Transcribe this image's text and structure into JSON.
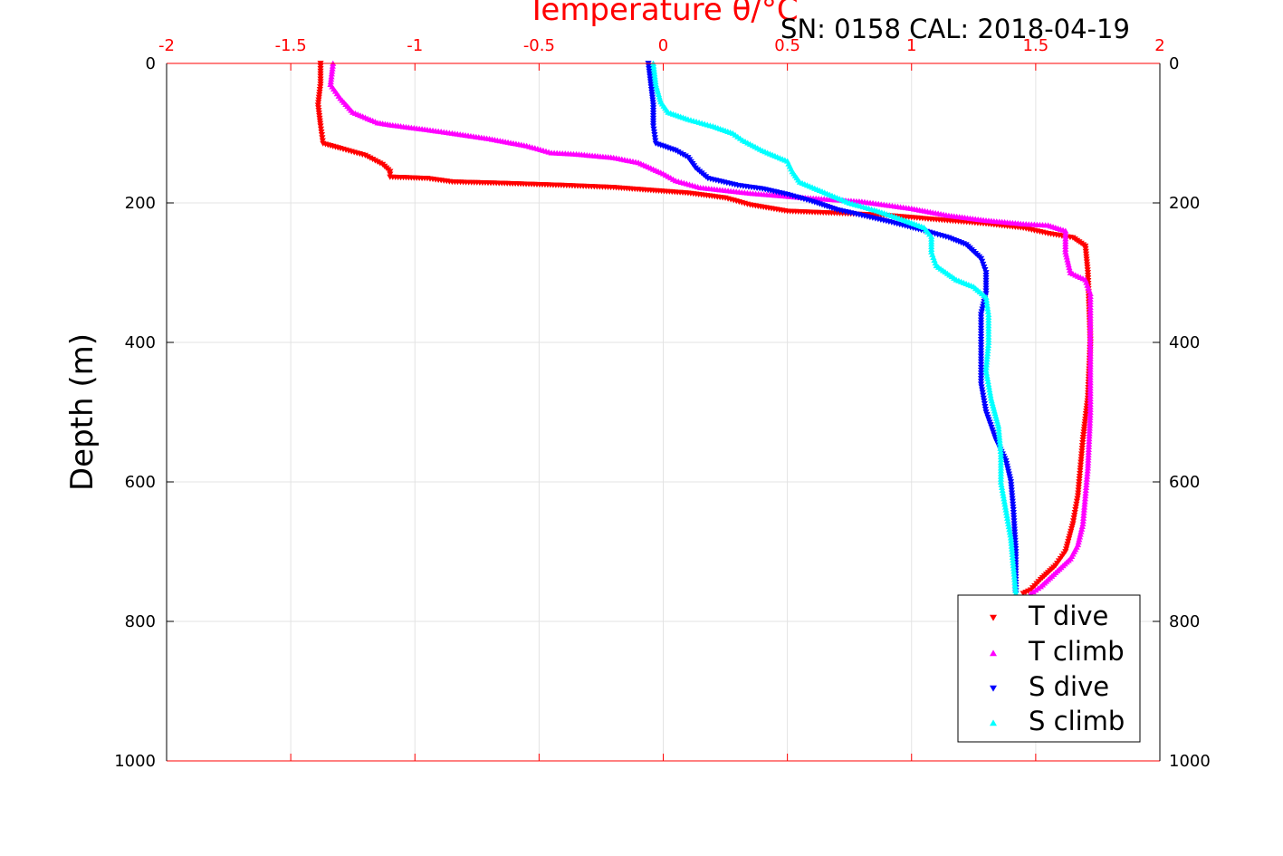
{
  "chart_data": {
    "type": "scatter",
    "title": "Temperature θ/°C",
    "subtitle": "SN: 0158  CAL: 2018-04-19",
    "xlabel": "Temperature θ/°C",
    "ylabel": "Depth (m)",
    "xlim": [
      -2,
      2
    ],
    "ylim": [
      0,
      1000
    ],
    "y_reversed": true,
    "x_axis_position": "top",
    "x_ticks": [
      "-2",
      "-1.5",
      "-1",
      "-0.5",
      "0",
      "0.5",
      "1",
      "1.5",
      "2"
    ],
    "y_ticks": [
      "0",
      "200",
      "400",
      "600",
      "800",
      "1000"
    ],
    "grid": true,
    "legend": {
      "position": "bottom-right",
      "entries": [
        "T dive",
        "T climb",
        "S dive",
        "S climb"
      ]
    },
    "series": [
      {
        "name": "T dive",
        "color": "#ff0000",
        "marker": "triangle-down",
        "points": [
          [
            -1.38,
            0
          ],
          [
            -1.38,
            30
          ],
          [
            -1.39,
            60
          ],
          [
            -1.38,
            90
          ],
          [
            -1.37,
            115
          ],
          [
            -1.3,
            122
          ],
          [
            -1.2,
            132
          ],
          [
            -1.13,
            145
          ],
          [
            -1.1,
            155
          ],
          [
            -1.1,
            163
          ],
          [
            -0.95,
            165
          ],
          [
            -0.85,
            170
          ],
          [
            -0.65,
            172
          ],
          [
            -0.4,
            175
          ],
          [
            -0.2,
            178
          ],
          [
            -0.05,
            182
          ],
          [
            0.1,
            186
          ],
          [
            0.25,
            193
          ],
          [
            0.35,
            203
          ],
          [
            0.5,
            212
          ],
          [
            0.7,
            215
          ],
          [
            0.9,
            218
          ],
          [
            1.1,
            224
          ],
          [
            1.3,
            230
          ],
          [
            1.45,
            236
          ],
          [
            1.55,
            244
          ],
          [
            1.65,
            250
          ],
          [
            1.7,
            262
          ],
          [
            1.71,
            300
          ],
          [
            1.72,
            400
          ],
          [
            1.71,
            480
          ],
          [
            1.69,
            540
          ],
          [
            1.68,
            580
          ],
          [
            1.67,
            620
          ],
          [
            1.65,
            660
          ],
          [
            1.62,
            700
          ],
          [
            1.58,
            720
          ],
          [
            1.52,
            740
          ],
          [
            1.48,
            755
          ],
          [
            1.45,
            760
          ]
        ]
      },
      {
        "name": "T climb",
        "color": "#ff00ff",
        "marker": "triangle-up",
        "points": [
          [
            -1.33,
            0
          ],
          [
            -1.34,
            30
          ],
          [
            -1.3,
            50
          ],
          [
            -1.25,
            70
          ],
          [
            -1.15,
            85
          ],
          [
            -1.1,
            88
          ],
          [
            -0.95,
            95
          ],
          [
            -0.85,
            100
          ],
          [
            -0.7,
            108
          ],
          [
            -0.55,
            118
          ],
          [
            -0.45,
            128
          ],
          [
            -0.35,
            130
          ],
          [
            -0.2,
            135
          ],
          [
            -0.1,
            142
          ],
          [
            -0.05,
            150
          ],
          [
            0.0,
            158
          ],
          [
            0.05,
            168
          ],
          [
            0.15,
            178
          ],
          [
            0.35,
            186
          ],
          [
            0.55,
            192
          ],
          [
            0.8,
            198
          ],
          [
            1.0,
            208
          ],
          [
            1.15,
            218
          ],
          [
            1.3,
            225
          ],
          [
            1.45,
            230
          ],
          [
            1.55,
            232
          ],
          [
            1.62,
            240
          ],
          [
            1.62,
            270
          ],
          [
            1.64,
            300
          ],
          [
            1.7,
            310
          ],
          [
            1.72,
            330
          ],
          [
            1.72,
            400
          ],
          [
            1.72,
            500
          ],
          [
            1.71,
            580
          ],
          [
            1.7,
            620
          ],
          [
            1.69,
            660
          ],
          [
            1.67,
            690
          ],
          [
            1.64,
            710
          ],
          [
            1.58,
            730
          ],
          [
            1.52,
            750
          ],
          [
            1.48,
            760
          ]
        ]
      },
      {
        "name": "S dive",
        "color": "#0000ff",
        "marker": "triangle-down",
        "points": [
          [
            -0.06,
            0
          ],
          [
            -0.05,
            30
          ],
          [
            -0.04,
            60
          ],
          [
            -0.04,
            90
          ],
          [
            -0.03,
            115
          ],
          [
            0.05,
            125
          ],
          [
            0.1,
            135
          ],
          [
            0.13,
            150
          ],
          [
            0.18,
            165
          ],
          [
            0.3,
            175
          ],
          [
            0.4,
            180
          ],
          [
            0.5,
            188
          ],
          [
            0.6,
            198
          ],
          [
            0.7,
            210
          ],
          [
            0.8,
            218
          ],
          [
            0.92,
            228
          ],
          [
            1.05,
            240
          ],
          [
            1.15,
            250
          ],
          [
            1.22,
            260
          ],
          [
            1.28,
            280
          ],
          [
            1.3,
            300
          ],
          [
            1.3,
            330
          ],
          [
            1.28,
            360
          ],
          [
            1.28,
            400
          ],
          [
            1.28,
            460
          ],
          [
            1.3,
            500
          ],
          [
            1.34,
            540
          ],
          [
            1.38,
            570
          ],
          [
            1.4,
            600
          ],
          [
            1.41,
            640
          ],
          [
            1.42,
            700
          ],
          [
            1.42,
            760
          ]
        ]
      },
      {
        "name": "S climb",
        "color": "#00ffff",
        "marker": "triangle-up",
        "points": [
          [
            -0.04,
            0
          ],
          [
            -0.03,
            30
          ],
          [
            -0.01,
            55
          ],
          [
            0.02,
            70
          ],
          [
            0.1,
            80
          ],
          [
            0.2,
            90
          ],
          [
            0.28,
            100
          ],
          [
            0.32,
            110
          ],
          [
            0.4,
            125
          ],
          [
            0.5,
            140
          ],
          [
            0.52,
            155
          ],
          [
            0.55,
            170
          ],
          [
            0.65,
            185
          ],
          [
            0.75,
            200
          ],
          [
            0.85,
            210
          ],
          [
            0.95,
            222
          ],
          [
            1.05,
            235
          ],
          [
            1.08,
            248
          ],
          [
            1.08,
            270
          ],
          [
            1.1,
            290
          ],
          [
            1.18,
            310
          ],
          [
            1.25,
            320
          ],
          [
            1.3,
            335
          ],
          [
            1.31,
            360
          ],
          [
            1.31,
            400
          ],
          [
            1.3,
            440
          ],
          [
            1.32,
            480
          ],
          [
            1.35,
            520
          ],
          [
            1.36,
            560
          ],
          [
            1.36,
            600
          ],
          [
            1.38,
            640
          ],
          [
            1.4,
            680
          ],
          [
            1.41,
            720
          ],
          [
            1.42,
            760
          ]
        ]
      }
    ]
  }
}
